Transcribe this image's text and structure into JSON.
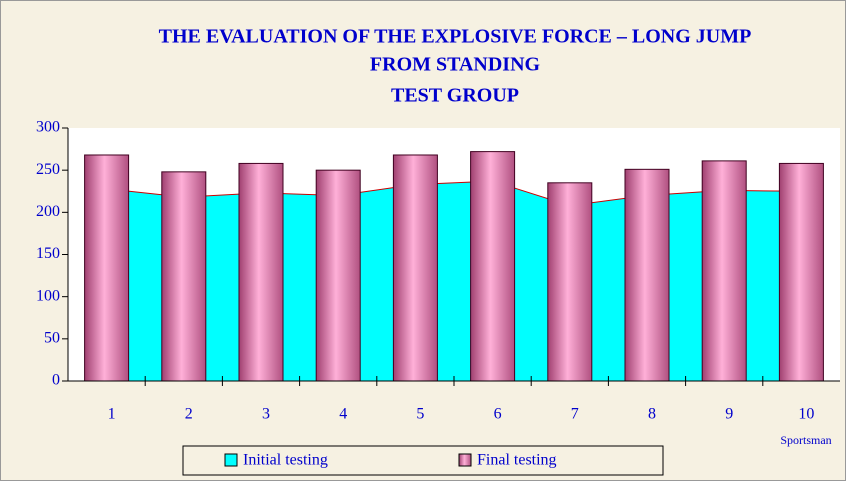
{
  "chart_data": {
    "type": "bar",
    "title": [
      "THE EVALUATION OF THE EXPLOSIVE FORCE – LONG JUMP",
      "FROM STANDING",
      "TEST GROUP"
    ],
    "x_label": "Sportsman",
    "categories": [
      "1",
      "2",
      "3",
      "4",
      "5",
      "6",
      "7",
      "8",
      "9",
      "10"
    ],
    "series": [
      {
        "name": "Initial testing",
        "type": "area",
        "color": "#00ffff",
        "line_color": "#cc0000",
        "values": [
          228,
          218,
          223,
          220,
          233,
          237,
          208,
          220,
          226,
          225
        ]
      },
      {
        "name": "Final testing",
        "type": "bar",
        "color": "#ff99cc",
        "values": [
          268,
          248,
          258,
          250,
          268,
          272,
          235,
          251,
          261,
          258
        ]
      }
    ],
    "ylim": [
      0,
      300
    ],
    "yticks": [
      0,
      50,
      100,
      150,
      200,
      250,
      300
    ],
    "grid": false
  }
}
